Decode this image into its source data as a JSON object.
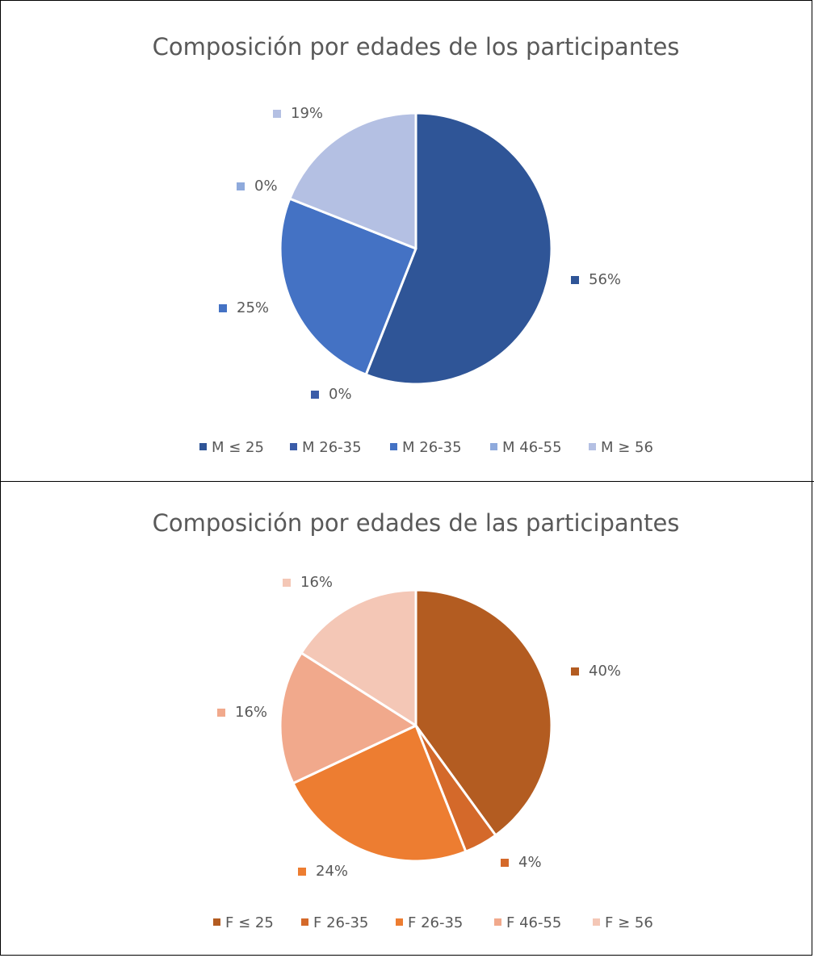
{
  "chart_data": [
    {
      "type": "pie",
      "title": "Composición por edades de los participantes",
      "categories": [
        "M ≤ 25",
        "M 26-35",
        "M 26-35",
        "M 46-55",
        "M ≥ 56"
      ],
      "values": [
        56,
        0,
        25,
        0,
        19
      ],
      "labels": [
        "56%",
        "0%",
        "25%",
        "0%",
        "19%"
      ],
      "colors": [
        "#2F5597",
        "#3B5CA8",
        "#4472C4",
        "#8FAADC",
        "#B4C0E3"
      ],
      "legend_position": "bottom"
    },
    {
      "type": "pie",
      "title": "Composición por edades de las participantes",
      "categories": [
        "F ≤ 25",
        "F 26-35",
        "F 26-35",
        "F 46-55",
        "F ≥ 56"
      ],
      "values": [
        40,
        4,
        24,
        16,
        16
      ],
      "labels": [
        "40%",
        "4%",
        "24%",
        "16%",
        "16%"
      ],
      "colors": [
        "#B35C21",
        "#D4692A",
        "#ED7D31",
        "#F1A98C",
        "#F4C7B6"
      ],
      "legend_position": "bottom"
    }
  ]
}
